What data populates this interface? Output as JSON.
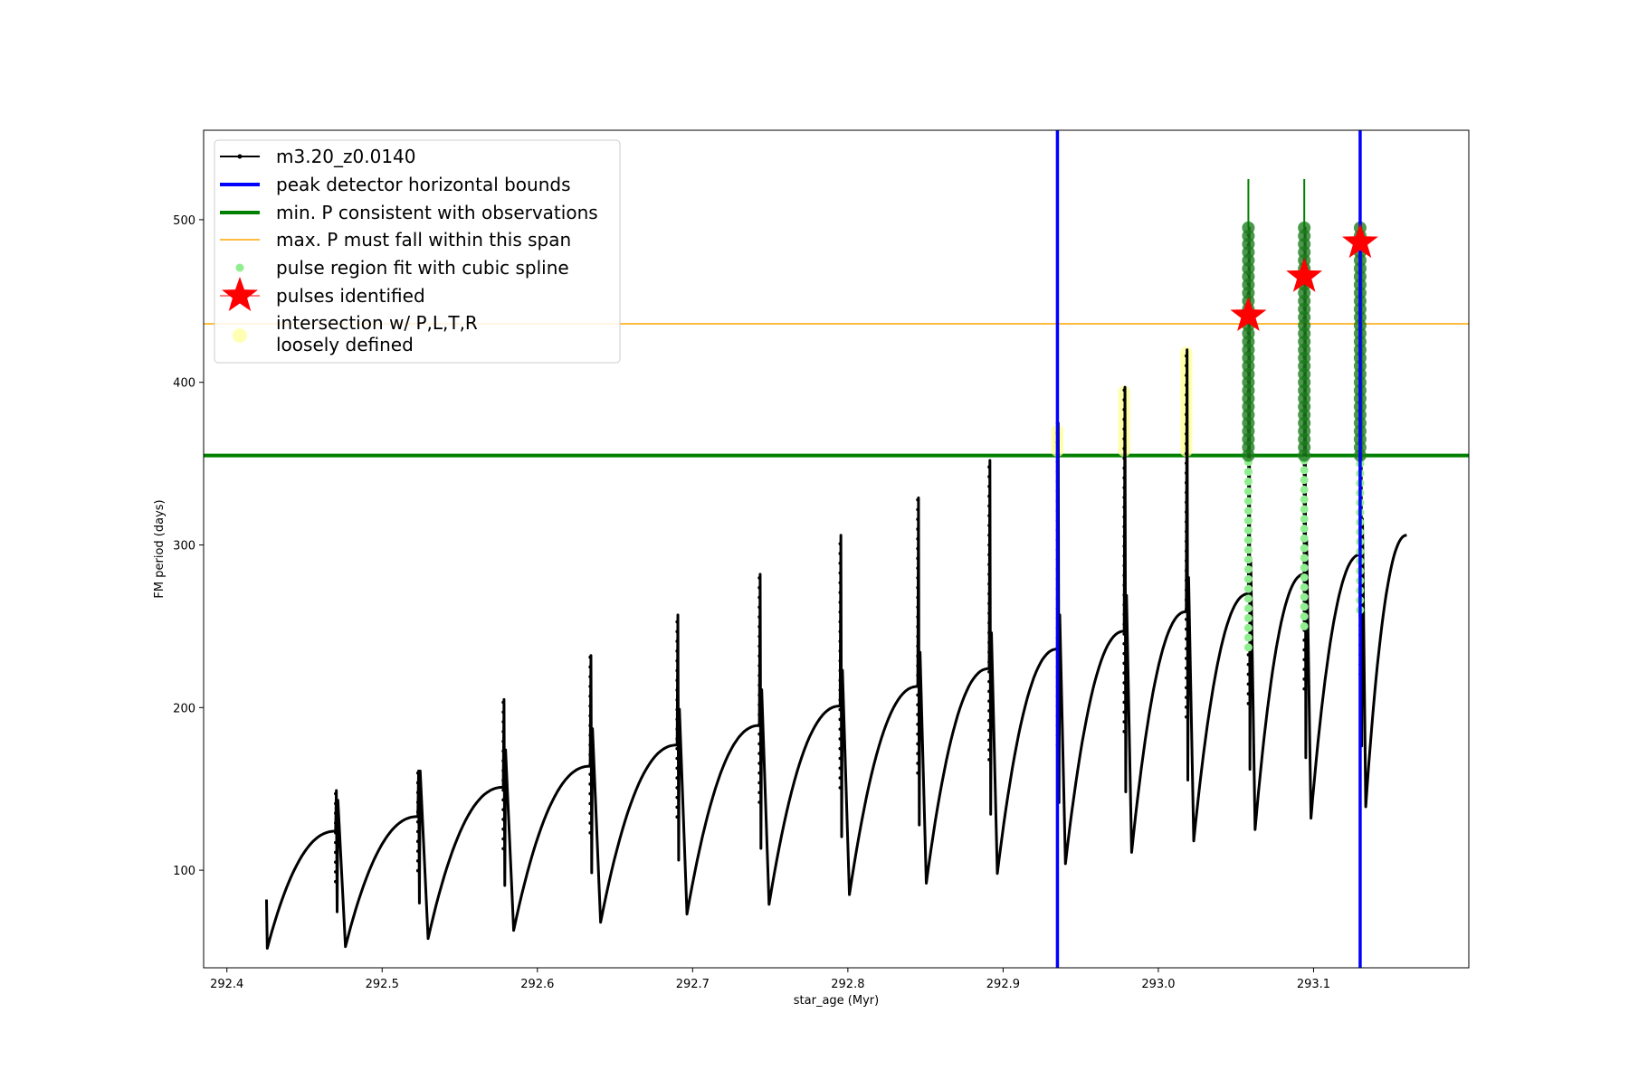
{
  "chart_data": {
    "type": "line",
    "xlabel": "star_age (Myr)",
    "ylabel": "FM period (days)",
    "xlim": [
      292.385,
      293.2
    ],
    "ylim": [
      40,
      555
    ],
    "xticks": [
      "292.4",
      "292.5",
      "292.6",
      "292.7",
      "292.8",
      "292.9",
      "293.0",
      "293.1"
    ],
    "yticks": [
      "100",
      "200",
      "300",
      "400",
      "500"
    ],
    "grid": false,
    "legend_location": "upper-left",
    "colors": {
      "series": "#000000",
      "bounds": "#0000ff",
      "min_p": "#008000",
      "max_p": "#ffa500",
      "pulse_fit": "#90ee90",
      "pulse_fit_strong": "#1e7d1e",
      "pulses": "#ff0000",
      "intersection": "#ffff99"
    },
    "legend": [
      {
        "label": "m3.20_z0.0140",
        "marker": "line-dot",
        "color": "#000000"
      },
      {
        "label": "peak detector horizontal bounds",
        "marker": "line",
        "color": "#0000ff"
      },
      {
        "label": "min. P consistent with observations",
        "marker": "line",
        "color": "#008000"
      },
      {
        "label": "max. P must fall within this span",
        "marker": "thin-line",
        "color": "#ffa500"
      },
      {
        "label": "pulse region fit with cubic spline",
        "marker": "dot",
        "color": "#90ee90"
      },
      {
        "label": "pulses identified",
        "marker": "star",
        "color": "#ff0000"
      },
      {
        "label": "intersection w/ P,L,T,R",
        "marker": "none",
        "color": "#ffff99"
      },
      {
        "label": "loosely defined",
        "marker": "circle",
        "color": "#ffff99"
      }
    ],
    "series": [
      {
        "name": "m3.20_z0.0140",
        "cycles": [
          {
            "start": 292.426,
            "peak_x": 292.47,
            "min": 52,
            "max": 124,
            "spike": 149
          },
          {
            "start": 292.47,
            "peak_x": 292.523,
            "min": 53,
            "max": 133,
            "spike": 161
          },
          {
            "start": 292.523,
            "peak_x": 292.578,
            "min": 58,
            "max": 151,
            "spike": 205
          },
          {
            "start": 292.578,
            "peak_x": 292.634,
            "min": 63,
            "max": 164,
            "spike": 232
          },
          {
            "start": 292.634,
            "peak_x": 292.69,
            "min": 68,
            "max": 177,
            "spike": 257
          },
          {
            "start": 292.69,
            "peak_x": 292.743,
            "min": 73,
            "max": 189,
            "spike": 282
          },
          {
            "start": 292.743,
            "peak_x": 292.795,
            "min": 79,
            "max": 201,
            "spike": 306
          },
          {
            "start": 292.795,
            "peak_x": 292.845,
            "min": 85,
            "max": 213,
            "spike": 329
          },
          {
            "start": 292.845,
            "peak_x": 292.891,
            "min": 92,
            "max": 224,
            "spike": 352
          },
          {
            "start": 292.891,
            "peak_x": 292.935,
            "min": 98,
            "max": 236,
            "spike": 375
          },
          {
            "start": 292.935,
            "peak_x": 292.978,
            "min": 104,
            "max": 247,
            "spike": 397
          },
          {
            "start": 292.978,
            "peak_x": 293.018,
            "min": 111,
            "max": 259,
            "spike": 420
          },
          {
            "start": 293.018,
            "peak_x": 293.058,
            "min": 118,
            "max": 270,
            "spike": 495
          },
          {
            "start": 293.058,
            "peak_x": 293.094,
            "min": 125,
            "max": 282,
            "spike": 495
          },
          {
            "start": 293.094,
            "peak_x": 293.13,
            "min": 132,
            "max": 294,
            "spike": 495
          },
          {
            "start": 293.13,
            "peak_x": 293.16,
            "min": 139,
            "max": 306,
            "spike": null
          }
        ]
      }
    ],
    "vertical_bounds": [
      292.935,
      293.13
    ],
    "min_p": 355,
    "max_p": 436,
    "pulses": [
      {
        "x": 293.058,
        "y": 441
      },
      {
        "x": 293.094,
        "y": 465
      },
      {
        "x": 293.13,
        "y": 486
      }
    ],
    "pulse_regions": [
      {
        "x": 293.058,
        "y_range": [
          237,
          495
        ],
        "strong_above": 355,
        "tip": 525
      },
      {
        "x": 293.094,
        "y_range": [
          250,
          495
        ],
        "strong_above": 355,
        "tip": 525
      },
      {
        "x": 293.13,
        "y_range": [
          260,
          495
        ],
        "strong_above": 355,
        "tip": null
      }
    ],
    "loosely_defined": [
      {
        "x": 292.935,
        "y_range": [
          358,
          373
        ]
      },
      {
        "x": 292.978,
        "y_range": [
          358,
          395
        ]
      },
      {
        "x": 293.018,
        "y_range": [
          358,
          418
        ]
      }
    ]
  }
}
